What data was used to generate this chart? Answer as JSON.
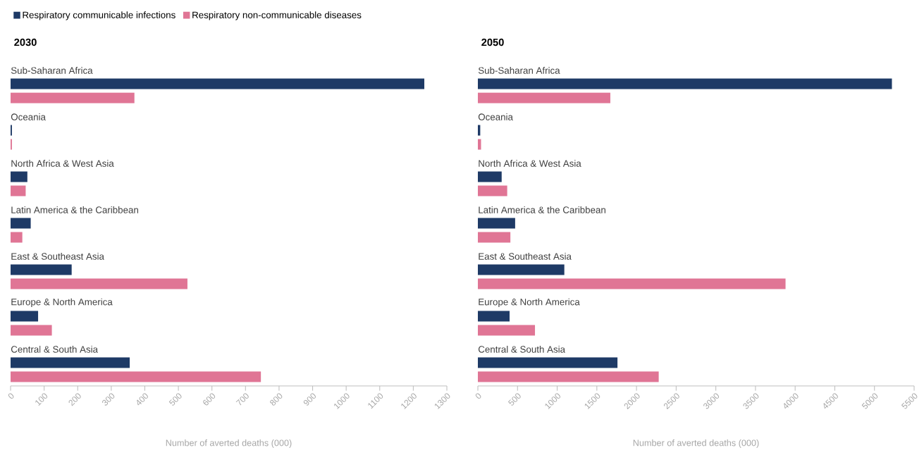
{
  "chart_data": [
    {
      "type": "bar",
      "orientation": "horizontal",
      "title": "2030",
      "xlabel": "Number of averted deaths (000)",
      "legend": "top left",
      "grid": false,
      "categories": [
        "Sub-Saharan Africa",
        "Oceania",
        "North Africa & West Asia",
        "Latin America & the Caribbean",
        "East & Southeast Asia",
        "Europe & North America",
        "Central & South Asia"
      ],
      "series": [
        {
          "name": "Respiratory communicable infections",
          "color": "#1e3a66",
          "values": [
            1233,
            4,
            50,
            60,
            182,
            82,
            355
          ]
        },
        {
          "name": "Respiratory non-communicable diseases",
          "color": "#e07595",
          "values": [
            369,
            4,
            45,
            35,
            527,
            123,
            746
          ]
        }
      ],
      "xlim": [
        0,
        1300
      ],
      "xticks": [
        0,
        100,
        200,
        300,
        400,
        500,
        600,
        700,
        800,
        900,
        1000,
        1100,
        1200,
        1300
      ]
    },
    {
      "type": "bar",
      "orientation": "horizontal",
      "title": "2050",
      "xlabel": "Number of averted deaths (000)",
      "grid": false,
      "categories": [
        "Sub-Saharan Africa",
        "Oceania",
        "North Africa & West Asia",
        "Latin America & the Caribbean",
        "East & Southeast Asia",
        "Europe & North America",
        "Central & South Asia"
      ],
      "series": [
        {
          "color": "#1e3a66",
          "values": [
            5220,
            30,
            300,
            470,
            1090,
            400,
            1760
          ]
        },
        {
          "color": "#e07595",
          "values": [
            1670,
            40,
            370,
            410,
            3880,
            720,
            2280
          ]
        }
      ],
      "xlim": [
        0,
        5500
      ],
      "xticks": [
        0,
        500,
        1000,
        1500,
        2000,
        2500,
        3000,
        3500,
        4000,
        4500,
        5000,
        5500
      ]
    }
  ]
}
